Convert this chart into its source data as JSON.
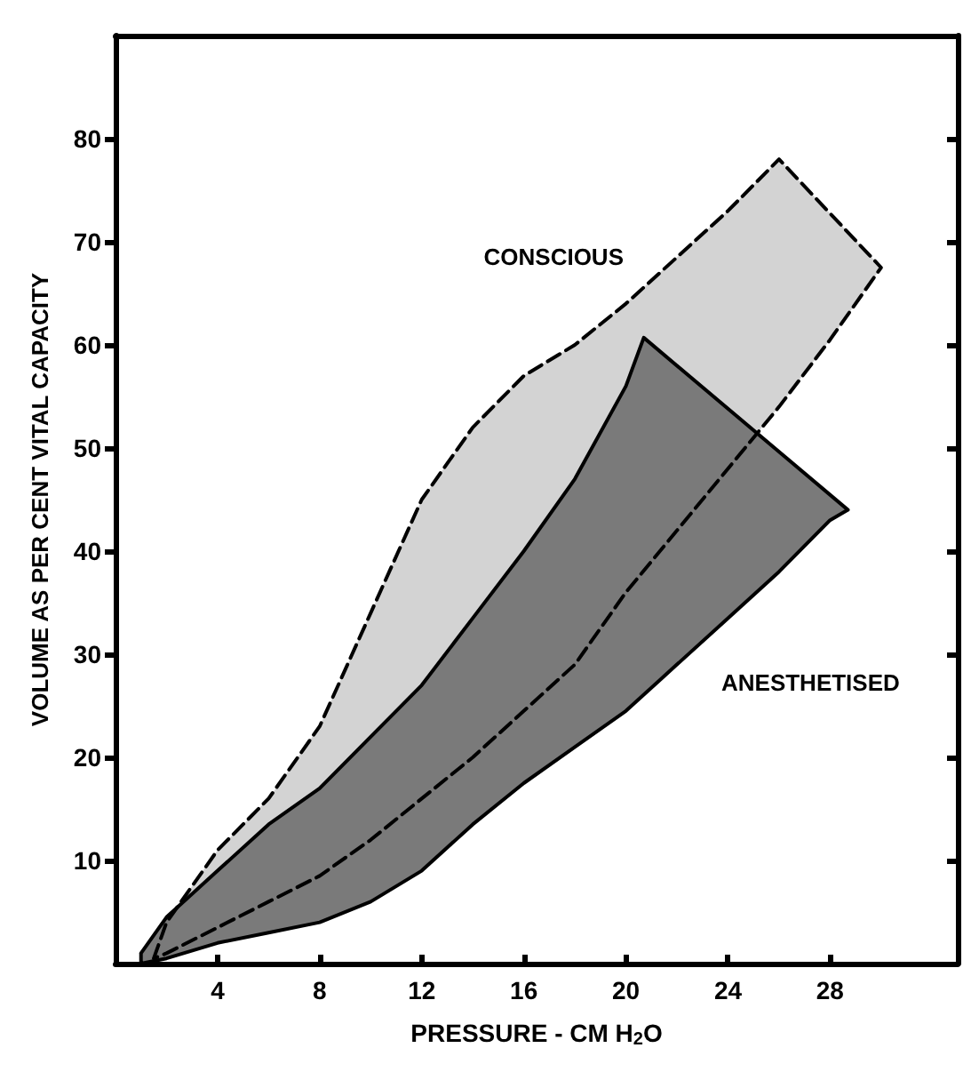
{
  "chart_data": {
    "type": "area",
    "xlabel": "PRESSURE - CM H$_{2}$O",
    "ylabel": "VOLUME AS PER CENT VITAL CAPACITY",
    "xlim": [
      0,
      33
    ],
    "xticks": [
      4,
      8,
      12,
      16,
      20,
      24,
      28
    ],
    "ylim": [
      0,
      90
    ],
    "yticks": [
      10,
      20,
      30,
      40,
      50,
      60,
      70,
      80
    ],
    "grid": false,
    "legend": false,
    "series": [
      {
        "name": "CONSCIOUS",
        "color": "#c4c4c4",
        "line_style": "dashed",
        "x": [
          1.5,
          2,
          4,
          6,
          8,
          10,
          12,
          14,
          16,
          18,
          20,
          22,
          24,
          26,
          30,
          28,
          26,
          24,
          22,
          20,
          18,
          16,
          14,
          12,
          10,
          8,
          6,
          4,
          2
        ],
        "values": [
          0.5,
          4,
          11,
          16,
          23,
          34,
          45,
          52,
          57,
          60,
          64,
          68.5,
          73,
          78,
          67.5,
          60.5,
          54,
          48,
          42,
          36,
          29,
          24.5,
          20,
          16,
          12,
          8.5,
          6,
          3.5,
          1
        ]
      },
      {
        "name": "ANESTHETISED",
        "color": "#7a7a7a",
        "line_style": "solid",
        "x": [
          1,
          2,
          4,
          6,
          8,
          10,
          12,
          14,
          16,
          18,
          20,
          20.7,
          28.7,
          28,
          26,
          24,
          22,
          20,
          18,
          16,
          14,
          12,
          10,
          8,
          6,
          4,
          2,
          1
        ],
        "values": [
          1,
          4.5,
          9,
          13.5,
          17,
          22,
          27,
          33.5,
          40,
          47,
          56,
          60.7,
          44,
          43,
          38,
          33.5,
          29,
          24.5,
          21,
          17.5,
          13.5,
          9,
          6,
          4,
          3,
          2,
          0.5,
          0
        ]
      }
    ]
  }
}
